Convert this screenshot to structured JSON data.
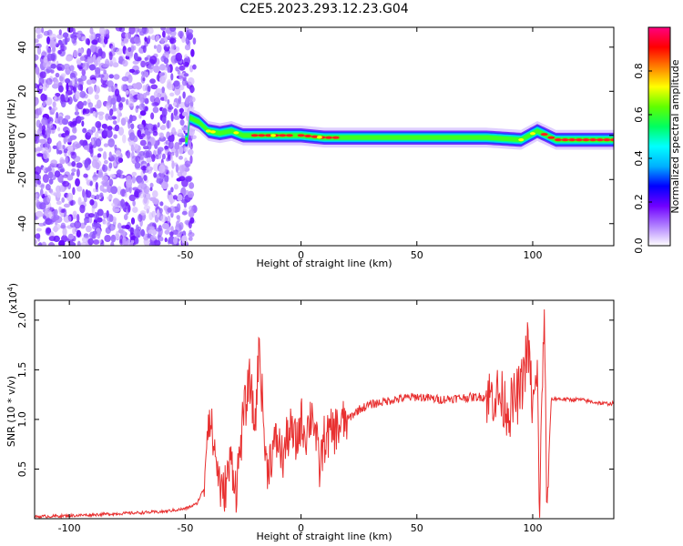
{
  "title": "C2E5.2023.293.12.23.G04",
  "chart_data": [
    {
      "type": "heatmap",
      "xlabel": "Height of straight line (km)",
      "ylabel": "Frequency (Hz)",
      "xlim": [
        -115,
        135
      ],
      "ylim": [
        -50,
        49
      ],
      "x_ticks": [
        "-100",
        "-50",
        "0",
        "50",
        "100"
      ],
      "x_tick_values": [
        -100,
        -50,
        0,
        50,
        100
      ],
      "y_ticks": [
        "-40",
        "-20",
        "0",
        "20",
        "40"
      ],
      "y_tick_values": [
        -40,
        -20,
        0,
        20,
        40
      ],
      "noise_region_x": [
        -115,
        -50
      ],
      "signal_track": [
        {
          "x": -48,
          "f": 8
        },
        {
          "x": -44,
          "f": 6
        },
        {
          "x": -40,
          "f": 2
        },
        {
          "x": -35,
          "f": 1
        },
        {
          "x": -30,
          "f": 2
        },
        {
          "x": -25,
          "f": 0
        },
        {
          "x": -20,
          "f": 0
        },
        {
          "x": -10,
          "f": 0
        },
        {
          "x": 0,
          "f": 0
        },
        {
          "x": 10,
          "f": -1
        },
        {
          "x": 20,
          "f": -1
        },
        {
          "x": 40,
          "f": -1
        },
        {
          "x": 60,
          "f": -1
        },
        {
          "x": 80,
          "f": -1
        },
        {
          "x": 95,
          "f": -2
        },
        {
          "x": 102,
          "f": 2
        },
        {
          "x": 110,
          "f": -2
        },
        {
          "x": 135,
          "f": -2
        }
      ],
      "colorbar": {
        "label": "Normalized spectral amplitude",
        "range": [
          0,
          1
        ],
        "ticks": [
          "0.0",
          "0.2",
          "0.4",
          "0.6",
          "0.8"
        ],
        "tick_values": [
          0,
          0.2,
          0.4,
          0.6,
          0.8
        ],
        "colors": [
          "#ffffff",
          "#b080ff",
          "#7000ff",
          "#0000ff",
          "#00b0ff",
          "#00ffff",
          "#00ff60",
          "#60ff00",
          "#ffff00",
          "#ff8000",
          "#ff0000",
          "#ff0080"
        ]
      }
    },
    {
      "type": "line",
      "xlabel": "Height of straight line (km)",
      "ylabel": "SNR (10 * v/v)",
      "y_multiplier": "(x10",
      "y_multiplier_exp": "4",
      "y_multiplier_close": ")",
      "xlim": [
        -115,
        135
      ],
      "ylim": [
        0,
        22000
      ],
      "x_ticks": [
        "-100",
        "-50",
        "0",
        "50",
        "100"
      ],
      "x_tick_values": [
        -100,
        -50,
        0,
        50,
        100
      ],
      "y_ticks": [
        "0.5",
        "1.0",
        "1.5",
        "2.0"
      ],
      "y_tick_values": [
        5000,
        10000,
        15000,
        20000
      ],
      "color": "#e83030",
      "series": [
        {
          "x": [
            -115,
            -100,
            -80,
            -60,
            -50,
            -45,
            -42,
            -40,
            -38,
            -36,
            -34,
            -32,
            -30,
            -28,
            -25,
            -22,
            -20,
            -18,
            -16,
            -15,
            -12,
            -10,
            -8,
            -5,
            -2,
            0,
            2,
            5,
            8,
            10,
            15,
            20,
            25,
            30,
            40,
            50,
            60,
            70,
            80,
            85,
            90,
            95,
            98,
            100,
            102,
            103,
            104,
            105,
            106,
            108,
            110,
            115,
            120,
            125,
            130,
            135
          ],
          "y": [
            200,
            300,
            500,
            700,
            1000,
            1500,
            3000,
            11000,
            8000,
            5000,
            2000,
            4000,
            6000,
            3000,
            10000,
            14000,
            9000,
            17500,
            9000,
            5000,
            7000,
            8000,
            6000,
            9000,
            7500,
            10000,
            8500,
            11000,
            5000,
            8000,
            9000,
            10000,
            11000,
            11500,
            12000,
            12300,
            12000,
            12200,
            12300,
            12500,
            11000,
            13000,
            17500,
            11000,
            14000,
            500,
            12000,
            22000,
            600,
            12000,
            12100,
            12000,
            12000,
            11800,
            11600,
            11600
          ]
        }
      ]
    }
  ]
}
